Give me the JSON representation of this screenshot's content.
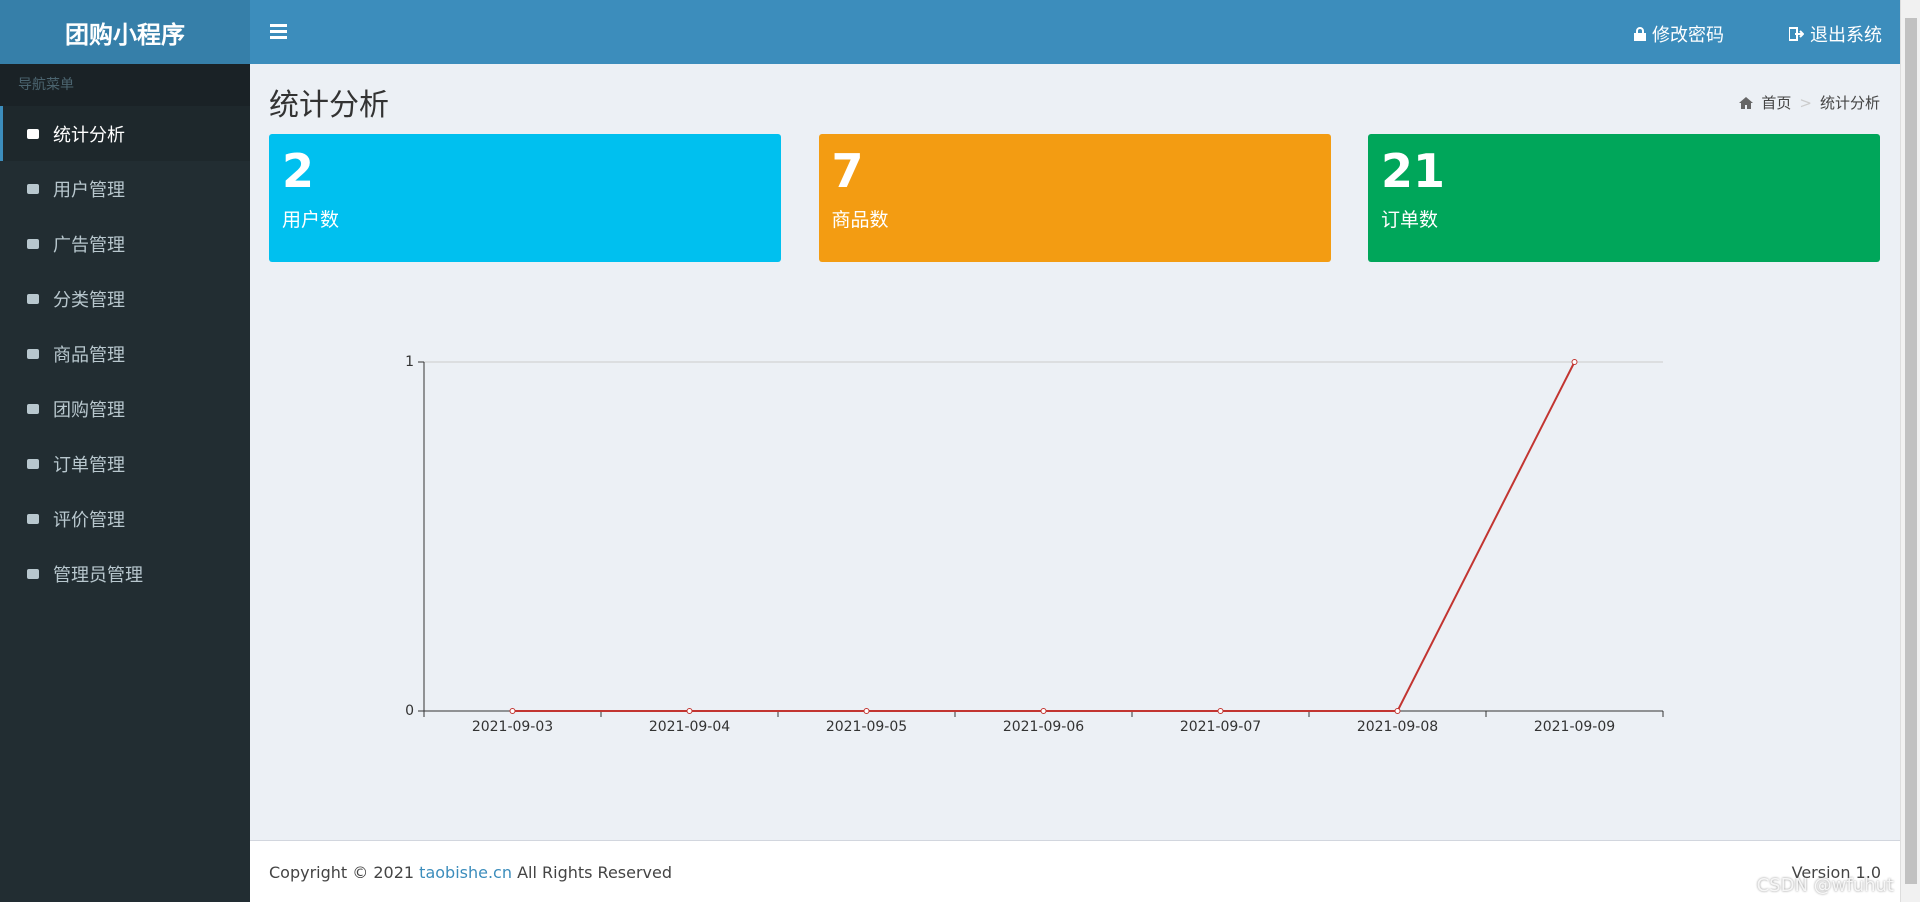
{
  "header": {
    "logo": "团购小程序",
    "change_password": "修改密码",
    "logout": "退出系统"
  },
  "sidebar": {
    "heading": "导航菜单",
    "items": [
      "统计分析",
      "用户管理",
      "广告管理",
      "分类管理",
      "商品管理",
      "团购管理",
      "订单管理",
      "评价管理",
      "管理员管理"
    ]
  },
  "page": {
    "title": "统计分析",
    "breadcrumb": [
      "首页",
      "统计分析"
    ]
  },
  "stats": [
    {
      "value": 2,
      "label": "用户数",
      "color": "#00c0ef"
    },
    {
      "value": 7,
      "label": "商品数",
      "color": "#f39c12"
    },
    {
      "value": 21,
      "label": "订单数",
      "color": "#00a65a"
    }
  ],
  "chart_data": {
    "type": "line",
    "categories": [
      "2021-09-03",
      "2021-09-04",
      "2021-09-05",
      "2021-09-06",
      "2021-09-07",
      "2021-09-08",
      "2021-09-09"
    ],
    "values": [
      0,
      0,
      0,
      0,
      0,
      0,
      1
    ],
    "color": "#c23531",
    "ylim": [
      0,
      1
    ],
    "yticks": [
      0,
      1
    ],
    "grid": true
  },
  "footer": {
    "copyright": "Copyright © 2021",
    "link": "taobishe.cn",
    "rights": "All Rights Reserved",
    "version": "Version 1.0"
  },
  "watermark": "CSDN @wfuhut"
}
